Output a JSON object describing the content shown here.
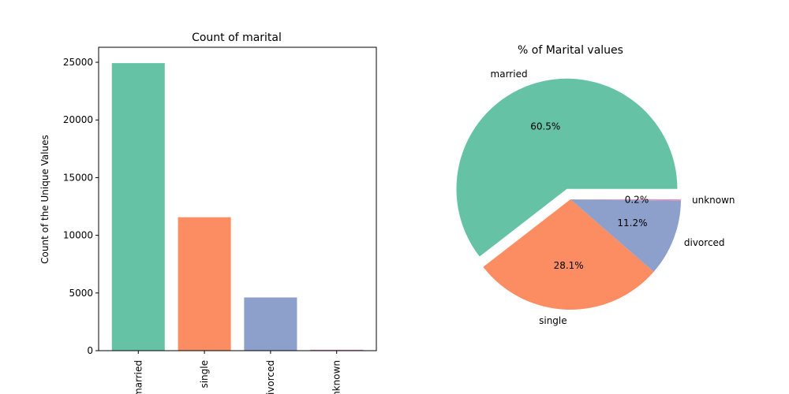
{
  "chart_data": [
    {
      "type": "bar",
      "title": "Count of marital",
      "xlabel": "",
      "ylabel": "Count of the Unique Values",
      "categories": [
        "married",
        "single",
        "divorced",
        "unknown"
      ],
      "values": [
        24928,
        11568,
        4612,
        80
      ],
      "ylim": [
        0,
        26300
      ],
      "yticks": [
        0,
        5000,
        10000,
        15000,
        20000,
        25000
      ],
      "colors": [
        "#66c2a5",
        "#fc8d62",
        "#8da0cb",
        "#e78ac3"
      ],
      "grid": false
    },
    {
      "type": "pie",
      "title": "% of Marital values",
      "labels": [
        "married",
        "single",
        "divorced",
        "unknown"
      ],
      "values": [
        60.5,
        28.1,
        11.2,
        0.2
      ],
      "value_labels": [
        "60.5%",
        "28.1%",
        "11.2%",
        "0.2%"
      ],
      "explode": [
        0.1,
        0,
        0,
        0
      ],
      "colors": [
        "#66c2a5",
        "#fc8d62",
        "#8da0cb",
        "#e78ac3"
      ]
    }
  ]
}
